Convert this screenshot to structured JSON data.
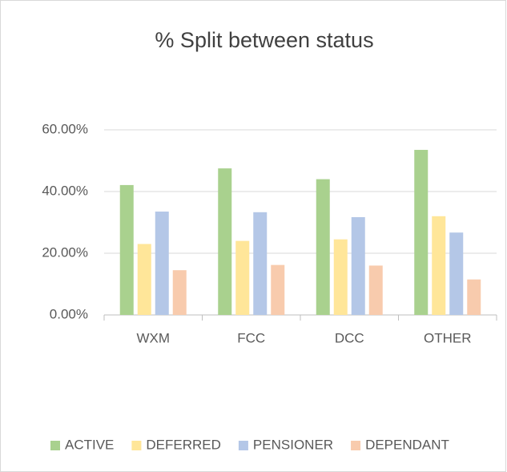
{
  "chart_data": {
    "type": "bar",
    "title": "% Split between status",
    "categories": [
      "WXM",
      "FCC",
      "DCC",
      "OTHER"
    ],
    "series": [
      {
        "name": "ACTIVE",
        "color": "#a9d18e",
        "values": [
          42.1,
          47.5,
          44,
          53.5
        ]
      },
      {
        "name": "DEFERRED",
        "color": "#ffe699",
        "values": [
          23,
          24,
          24.5,
          32
        ]
      },
      {
        "name": "PENSIONER",
        "color": "#b4c7e7",
        "values": [
          33.5,
          33.3,
          31.7,
          26.7
        ]
      },
      {
        "name": "DEPENDANT",
        "color": "#f8cbad",
        "values": [
          14.5,
          16.2,
          16,
          11.5
        ]
      }
    ],
    "ylim": [
      0,
      60
    ],
    "yticks": [
      {
        "value": 0,
        "label": "0.00%"
      },
      {
        "value": 20,
        "label": "20.00%"
      },
      {
        "value": 40,
        "label": "40.00%"
      },
      {
        "value": 60,
        "label": "60.00%"
      }
    ],
    "grid": true,
    "legend": "bottom"
  }
}
